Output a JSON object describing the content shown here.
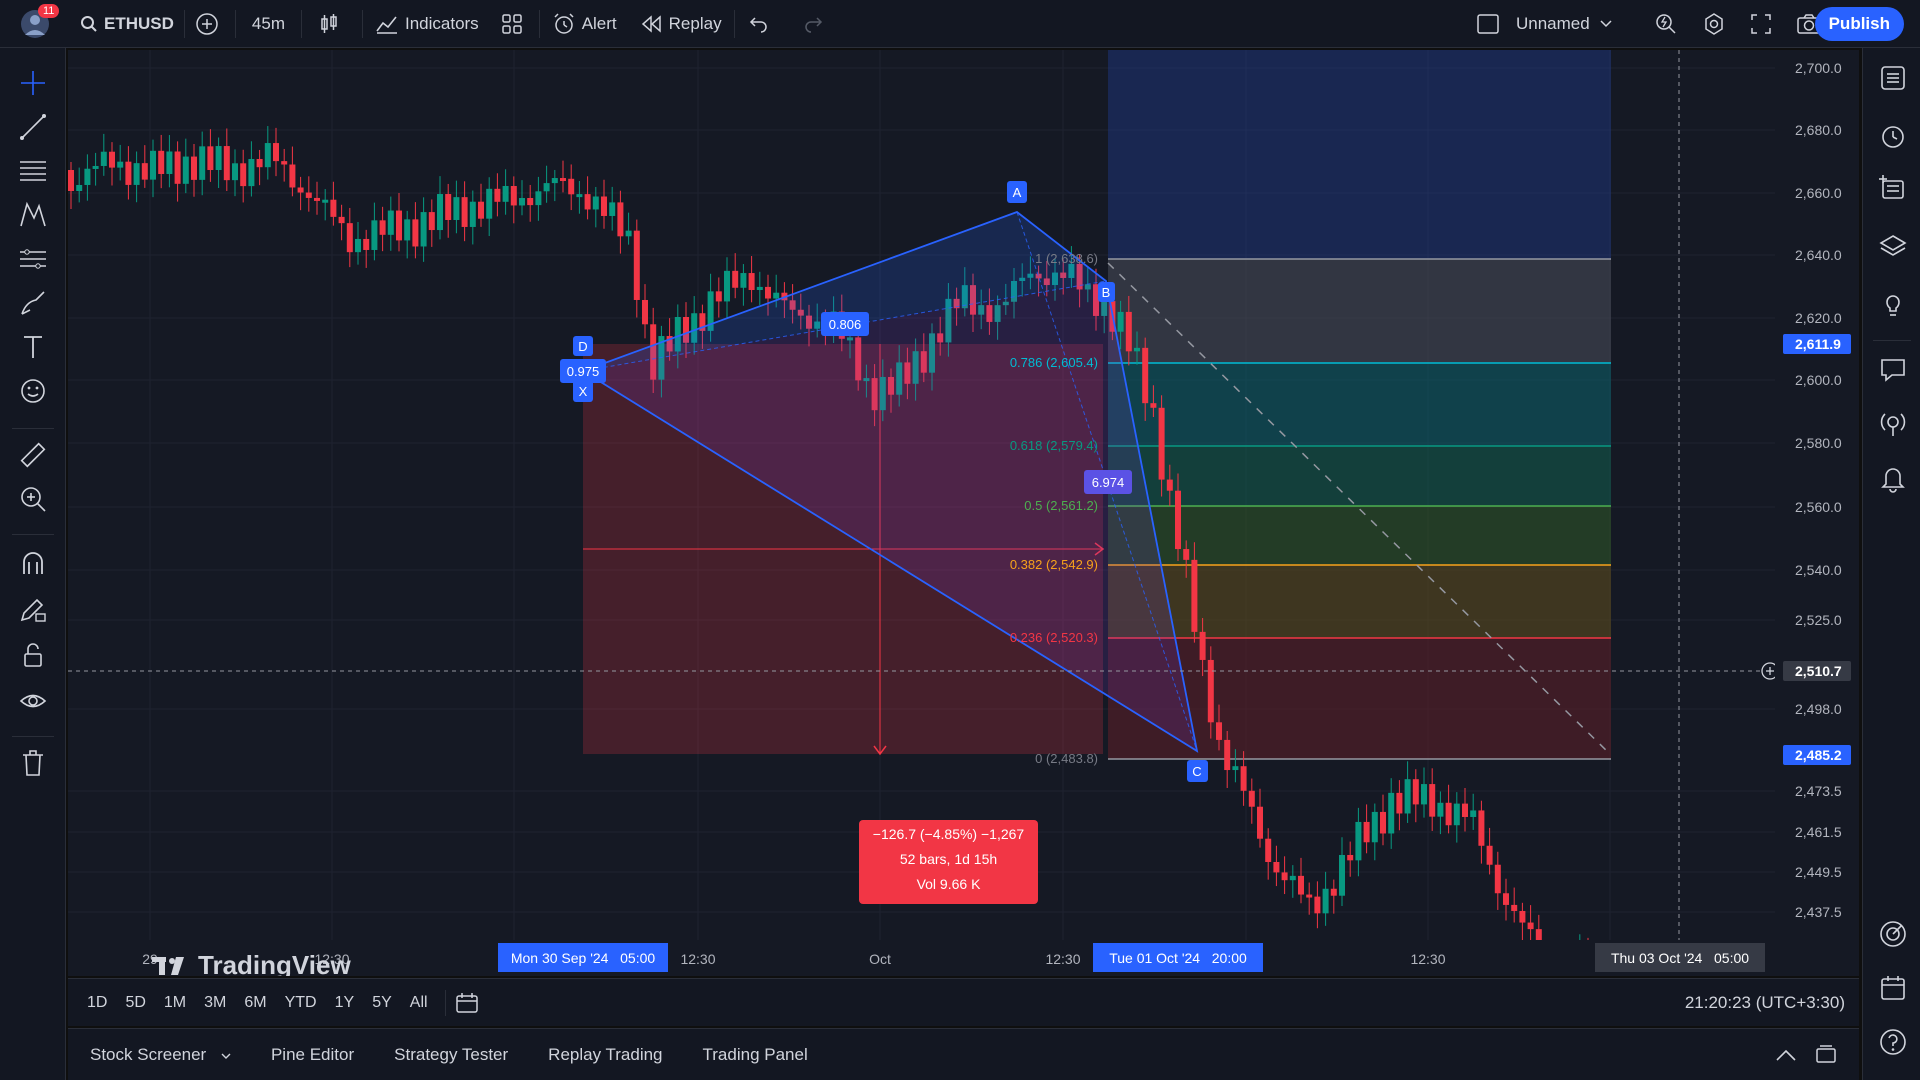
{
  "toolbar": {
    "avatar_badge": "11",
    "symbol": "ETHUSD",
    "interval": "45m",
    "indicators": "Indicators",
    "alert": "Alert",
    "replay": "Replay",
    "layout_name": "Unnamed",
    "publish": "Publish"
  },
  "price_axis": {
    "ticks": [
      "2,700.0",
      "2,680.0",
      "2,660.0",
      "2,640.0",
      "2,620.0",
      "2,600.0",
      "2,580.0",
      "2,560.0",
      "2,540.0",
      "2,525.0",
      "2,498.0",
      "2,473.5",
      "2,461.5",
      "2,449.5",
      "2,437.5"
    ],
    "last_price": "2,611.9",
    "crosshair_price": "2,510.7",
    "alert_price": "2,485.2",
    "colors": {
      "last": "#2962ff",
      "crosshair": "#363a45",
      "alert": "#2962ff"
    }
  },
  "time_axis": {
    "ticks": [
      "29",
      "12:30",
      "12:30",
      "Oct",
      "12:30",
      "12:30"
    ],
    "highlight_1": "Mon 30 Sep '24   05:00",
    "highlight_2": "Tue 01 Oct '24   20:00",
    "highlight_3": "Thu 03 Oct '24   05:00"
  },
  "fib": {
    "levels": [
      {
        "label": "1 (2,638.6)",
        "color": "#787b86"
      },
      {
        "label": "0.786 (2,605.4)",
        "color": "#00bcd4"
      },
      {
        "label": "0.618 (2,579.4)",
        "color": "#089981"
      },
      {
        "label": "0.5 (2,561.2)",
        "color": "#4caf50"
      },
      {
        "label": "0.382 (2,542.9)",
        "color": "#f7a21b"
      },
      {
        "label": "0.236 (2,520.3)",
        "color": "#f23645"
      },
      {
        "label": "0 (2,483.8)",
        "color": "#787b86"
      }
    ]
  },
  "pattern": {
    "point_a": "A",
    "point_b": "B",
    "point_c": "C",
    "point_x": "X",
    "point_d": "D",
    "ratio_1": "0.806",
    "ratio_2": "0.975",
    "ratio_3": "6.974"
  },
  "measure": {
    "line1": "−126.7 (−4.85%) −1,267",
    "line2": "52 bars, 1d 15h",
    "line3": "Vol 9.66 K"
  },
  "brand": "TradingView",
  "ranges": [
    "1D",
    "5D",
    "1M",
    "3M",
    "6M",
    "YTD",
    "1Y",
    "5Y",
    "All"
  ],
  "clock": "21:20:23 (UTC+3:30)",
  "bottom_tabs": [
    "Stock Screener",
    "Pine Editor",
    "Strategy Tester",
    "Replay Trading",
    "Trading Panel"
  ]
}
